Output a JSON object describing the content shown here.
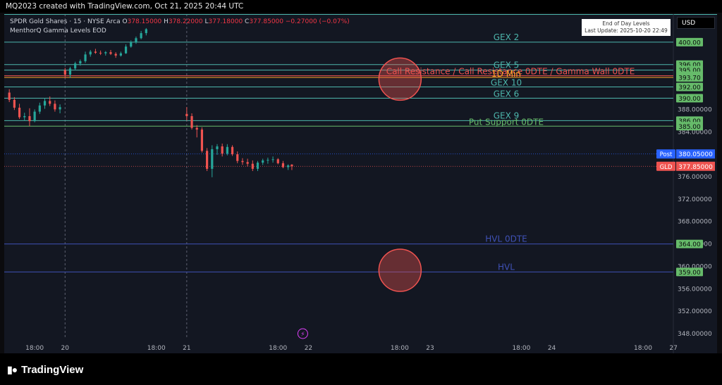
{
  "header": {
    "credit": "MQ2023 created with TradingView.com, Oct 21, 2025 20:44 UTC"
  },
  "legend": {
    "symbol_line": "SPDR Gold Shares · 15 · NYSE Arca",
    "ohlc": [
      {
        "label": "O",
        "value": "378.15000"
      },
      {
        "label": "H",
        "value": "378.22000"
      },
      {
        "label": "L",
        "value": "377.18000"
      },
      {
        "label": "C",
        "value": "377.85000"
      }
    ],
    "change": "−0.27000 (−0.07%)",
    "indicator": "MenthorQ Gamma Levels EOD"
  },
  "eod_box": {
    "line1": "End of Day Levels",
    "line2": "Last Update: 2025-10-20 22:49"
  },
  "currency": "USD",
  "footer": {
    "brand": "TradingView"
  },
  "colors": {
    "background": "#131722",
    "up": "#26a69a",
    "down": "#ef5350",
    "level_teal": "#4db6ac",
    "level_red": "#ef5350",
    "level_blue": "#3f51b5",
    "level_green": "#66bb6a",
    "post": "#2962ff"
  },
  "chart_data": {
    "type": "candlestick",
    "y_range": [
      347,
      405
    ],
    "x_range": [
      "2025-10-19 12:00",
      "2025-10-24 23:59"
    ],
    "x_ticks": [
      "18:00",
      "20",
      "18:00",
      "21",
      "18:00",
      "22",
      "18:00",
      "23",
      "18:00",
      "24",
      "18:00",
      "27"
    ],
    "y_ticks": [
      "348.00000",
      "352.00000",
      "356.00000",
      "360.00000",
      "364.00000",
      "368.00000",
      "372.00000",
      "376.00000",
      "380.00000",
      "384.00000",
      "388.00000"
    ],
    "levels": [
      {
        "label": "GEX 2",
        "value": 400.0,
        "badge": "400.00",
        "color": "#4db6ac"
      },
      {
        "label": "",
        "value": 396.0,
        "badge": "396.00",
        "color": "#4db6ac"
      },
      {
        "label": "GEX 5",
        "value": 395.0,
        "badge": "395.00",
        "color": "#4db6ac"
      },
      {
        "label": "Call Resistance / Call Resistance 0DTE / Gamma Wall 0DTE",
        "value": 394.0,
        "badge": "394.00",
        "color": "#ef5350"
      },
      {
        "label": "1D Min",
        "value": 393.7,
        "badge": "393.70",
        "color": "#ffa726"
      },
      {
        "label": "GEX 10",
        "value": 392.0,
        "badge": "392.00",
        "color": "#4db6ac"
      },
      {
        "label": "GEX 6",
        "value": 390.0,
        "badge": "390.00",
        "color": "#4db6ac"
      },
      {
        "label": "GEX 9",
        "value": 386.0,
        "badge": "386.00",
        "color": "#4db6ac"
      },
      {
        "label": "Put Support 0DTE",
        "value": 385.0,
        "badge": "385.00",
        "color": "#66bb6a"
      },
      {
        "label": "HVL 0DTE",
        "value": 364.0,
        "badge": "364.00",
        "color": "#3f51b5"
      },
      {
        "label": "HVL",
        "value": 359.0,
        "badge": "359.00",
        "color": "#3f51b5"
      }
    ],
    "price_tags": [
      {
        "name": "Post",
        "value": "380.05000",
        "y": 380.05,
        "color": "#2962ff"
      },
      {
        "name": "GLD",
        "value": "377.85000",
        "y": 377.85,
        "color": "#ef5350"
      }
    ],
    "highlight_circles": [
      {
        "x": "2025-10-22 18:00",
        "y": 393.4
      },
      {
        "x": "2025-10-22 18:00",
        "y": 359.3
      }
    ],
    "candles": [
      {
        "t": "2025-10-19 13:00",
        "o": 391.0,
        "h": 391.6,
        "l": 389.3,
        "c": 389.7
      },
      {
        "t": "2025-10-19 14:00",
        "o": 389.7,
        "h": 390.2,
        "l": 387.9,
        "c": 388.3
      },
      {
        "t": "2025-10-19 15:00",
        "o": 388.3,
        "h": 389.0,
        "l": 386.3,
        "c": 386.6
      },
      {
        "t": "2025-10-19 16:00",
        "o": 386.6,
        "h": 387.4,
        "l": 386.0,
        "c": 386.8
      },
      {
        "t": "2025-10-19 17:00",
        "o": 386.8,
        "h": 388.2,
        "l": 385.0,
        "c": 385.9
      },
      {
        "t": "2025-10-19 18:00",
        "o": 385.9,
        "h": 388.0,
        "l": 385.7,
        "c": 387.6
      },
      {
        "t": "2025-10-19 19:00",
        "o": 387.6,
        "h": 389.2,
        "l": 387.2,
        "c": 388.7
      },
      {
        "t": "2025-10-19 20:00",
        "o": 388.7,
        "h": 390.0,
        "l": 388.1,
        "c": 389.5
      },
      {
        "t": "2025-10-19 21:00",
        "o": 389.5,
        "h": 390.3,
        "l": 388.6,
        "c": 389.0
      },
      {
        "t": "2025-10-19 22:00",
        "o": 389.0,
        "h": 389.6,
        "l": 387.6,
        "c": 388.0
      },
      {
        "t": "2025-10-19 23:00",
        "o": 388.0,
        "h": 388.9,
        "l": 387.3,
        "c": 388.4
      },
      {
        "t": "2025-10-20 00:00",
        "o": 395.0,
        "h": 395.4,
        "l": 393.6,
        "c": 394.2
      },
      {
        "t": "2025-10-20 01:00",
        "o": 394.2,
        "h": 395.6,
        "l": 393.6,
        "c": 395.3
      },
      {
        "t": "2025-10-20 02:00",
        "o": 395.3,
        "h": 396.5,
        "l": 395.0,
        "c": 396.2
      },
      {
        "t": "2025-10-20 03:00",
        "o": 396.2,
        "h": 396.9,
        "l": 395.8,
        "c": 396.6
      },
      {
        "t": "2025-10-20 04:00",
        "o": 396.6,
        "h": 398.3,
        "l": 396.3,
        "c": 397.8
      },
      {
        "t": "2025-10-20 05:00",
        "o": 397.8,
        "h": 398.6,
        "l": 397.4,
        "c": 398.3
      },
      {
        "t": "2025-10-20 06:00",
        "o": 398.3,
        "h": 398.8,
        "l": 397.9,
        "c": 398.1
      },
      {
        "t": "2025-10-20 07:00",
        "o": 398.1,
        "h": 398.5,
        "l": 397.7,
        "c": 398.0
      },
      {
        "t": "2025-10-20 08:00",
        "o": 398.0,
        "h": 398.4,
        "l": 397.6,
        "c": 398.2
      },
      {
        "t": "2025-10-20 09:00",
        "o": 398.2,
        "h": 398.6,
        "l": 397.7,
        "c": 397.9
      },
      {
        "t": "2025-10-20 10:00",
        "o": 397.9,
        "h": 398.2,
        "l": 397.2,
        "c": 397.6
      },
      {
        "t": "2025-10-20 11:00",
        "o": 397.6,
        "h": 398.3,
        "l": 397.4,
        "c": 398.0
      },
      {
        "t": "2025-10-20 12:00",
        "o": 398.0,
        "h": 399.6,
        "l": 397.9,
        "c": 399.2
      },
      {
        "t": "2025-10-20 13:00",
        "o": 399.2,
        "h": 400.3,
        "l": 399.0,
        "c": 400.0
      },
      {
        "t": "2025-10-20 14:00",
        "o": 400.0,
        "h": 401.0,
        "l": 399.7,
        "c": 400.7
      },
      {
        "t": "2025-10-20 15:00",
        "o": 400.7,
        "h": 402.0,
        "l": 400.5,
        "c": 401.6
      },
      {
        "t": "2025-10-20 16:00",
        "o": 401.6,
        "h": 402.5,
        "l": 401.2,
        "c": 402.3
      },
      {
        "t": "2025-10-21 00:00",
        "o": 387.2,
        "h": 388.4,
        "l": 386.0,
        "c": 386.8
      },
      {
        "t": "2025-10-21 01:00",
        "o": 386.8,
        "h": 387.3,
        "l": 384.4,
        "c": 384.7
      },
      {
        "t": "2025-10-21 02:00",
        "o": 384.7,
        "h": 385.2,
        "l": 383.0,
        "c": 384.4
      },
      {
        "t": "2025-10-21 03:00",
        "o": 384.4,
        "h": 384.8,
        "l": 380.3,
        "c": 380.6
      },
      {
        "t": "2025-10-21 04:00",
        "o": 380.6,
        "h": 381.1,
        "l": 377.0,
        "c": 377.4
      },
      {
        "t": "2025-10-21 05:00",
        "o": 377.4,
        "h": 381.6,
        "l": 375.9,
        "c": 380.9
      },
      {
        "t": "2025-10-21 06:00",
        "o": 380.9,
        "h": 381.8,
        "l": 379.9,
        "c": 381.4
      },
      {
        "t": "2025-10-21 07:00",
        "o": 381.4,
        "h": 381.9,
        "l": 379.6,
        "c": 380.1
      },
      {
        "t": "2025-10-21 08:00",
        "o": 380.1,
        "h": 381.8,
        "l": 379.8,
        "c": 381.3
      },
      {
        "t": "2025-10-21 09:00",
        "o": 381.3,
        "h": 381.6,
        "l": 379.7,
        "c": 380.0
      },
      {
        "t": "2025-10-21 10:00",
        "o": 380.0,
        "h": 380.5,
        "l": 378.4,
        "c": 378.8
      },
      {
        "t": "2025-10-21 11:00",
        "o": 378.8,
        "h": 379.3,
        "l": 378.1,
        "c": 378.6
      },
      {
        "t": "2025-10-21 12:00",
        "o": 378.6,
        "h": 379.2,
        "l": 377.8,
        "c": 378.3
      },
      {
        "t": "2025-10-21 13:00",
        "o": 378.3,
        "h": 378.9,
        "l": 377.0,
        "c": 377.4
      },
      {
        "t": "2025-10-21 14:00",
        "o": 377.4,
        "h": 378.8,
        "l": 377.0,
        "c": 378.5
      },
      {
        "t": "2025-10-21 15:00",
        "o": 378.5,
        "h": 379.2,
        "l": 378.1,
        "c": 378.9
      },
      {
        "t": "2025-10-21 16:00",
        "o": 378.9,
        "h": 379.4,
        "l": 378.3,
        "c": 379.0
      },
      {
        "t": "2025-10-21 17:00",
        "o": 379.0,
        "h": 379.6,
        "l": 378.5,
        "c": 379.1
      },
      {
        "t": "2025-10-21 18:00",
        "o": 379.1,
        "h": 379.3,
        "l": 378.2,
        "c": 378.4
      },
      {
        "t": "2025-10-21 19:00",
        "o": 378.4,
        "h": 378.8,
        "l": 377.5,
        "c": 377.7
      },
      {
        "t": "2025-10-21 20:00",
        "o": 377.7,
        "h": 378.2,
        "l": 377.2,
        "c": 378.0
      },
      {
        "t": "2025-10-21 20:44",
        "o": 378.15,
        "h": 378.22,
        "l": 377.18,
        "c": 377.85
      }
    ]
  }
}
